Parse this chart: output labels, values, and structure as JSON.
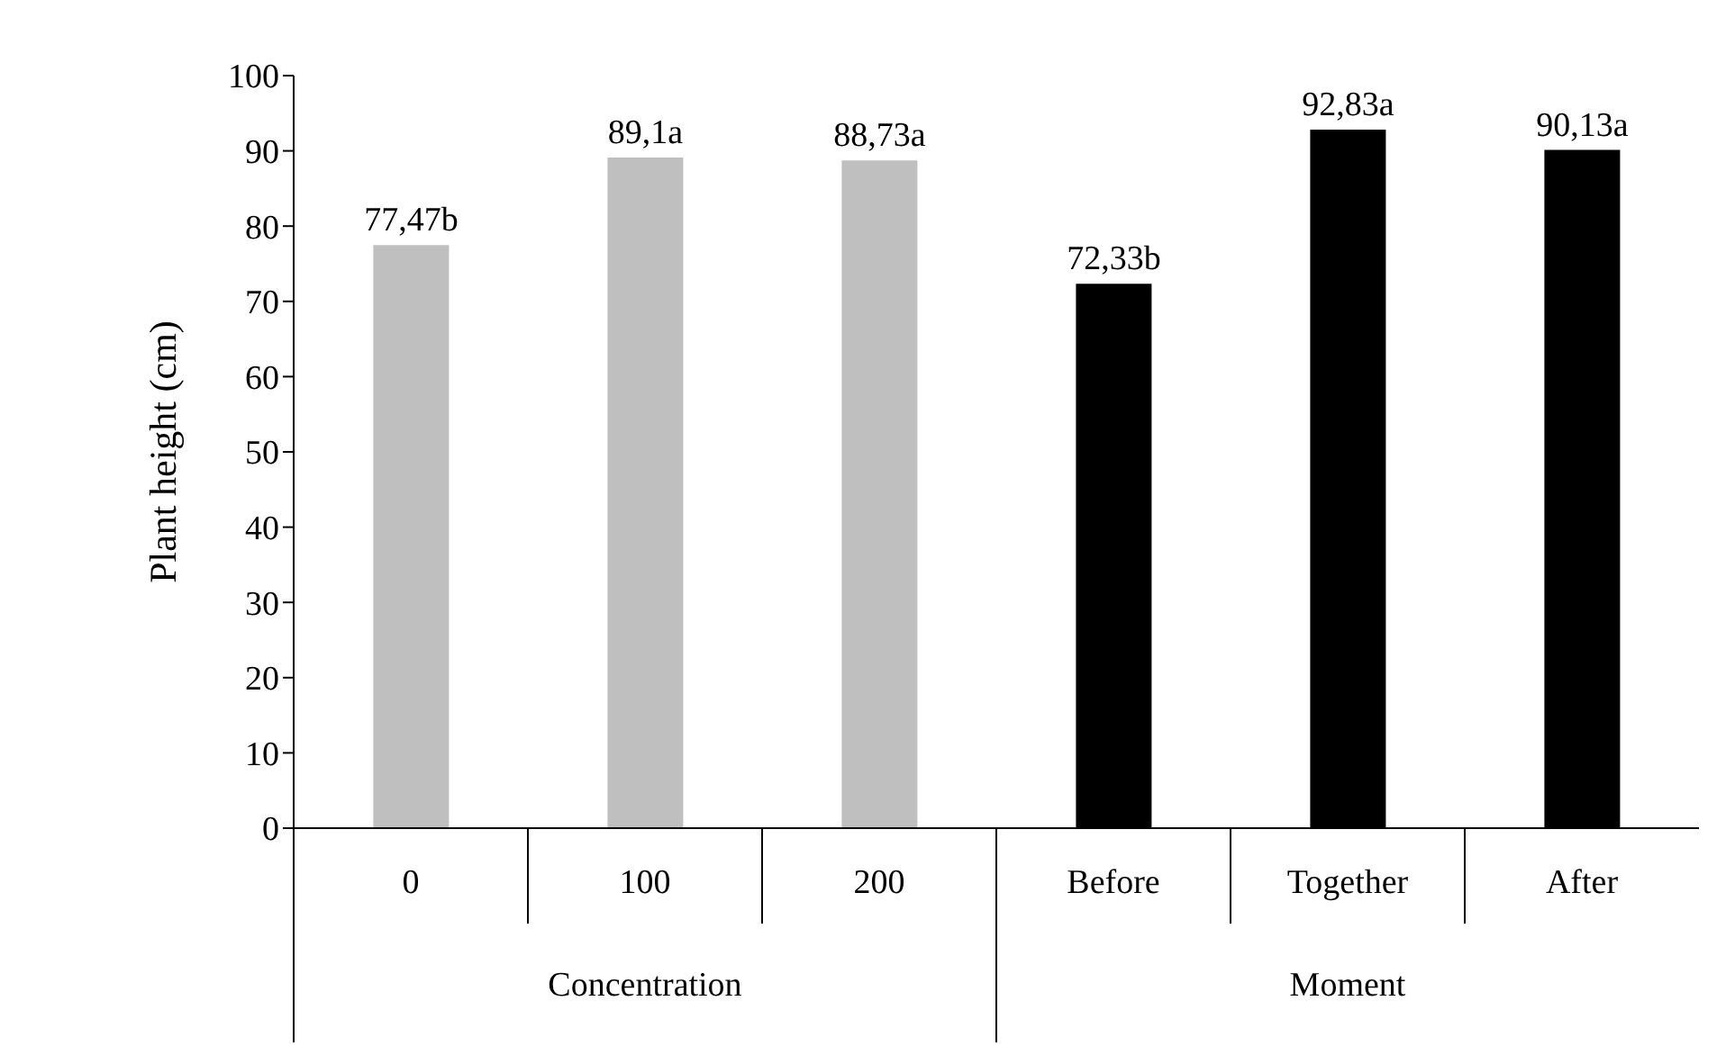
{
  "chart_data": {
    "type": "bar",
    "ylabel": "Plant height (cm)",
    "categories": [
      "0",
      "100",
      "200",
      "Before",
      "Together",
      "After"
    ],
    "values": [
      77.47,
      89.1,
      88.73,
      72.33,
      92.83,
      90.13
    ],
    "colors": [
      "#bfbfbf",
      "#bfbfbf",
      "#bfbfbf",
      "#000000",
      "#000000",
      "#000000"
    ],
    "value_labels": [
      "77,47b",
      "89,1a",
      "88,73a",
      "72,33b",
      "92,83a",
      "90,13a"
    ],
    "ylim": [
      0,
      100
    ],
    "yticks": [
      0,
      10,
      20,
      30,
      40,
      50,
      60,
      70,
      80,
      90,
      100
    ],
    "annotations": [
      "Concentration",
      "Moment"
    ],
    "grid": false,
    "legend": false
  }
}
